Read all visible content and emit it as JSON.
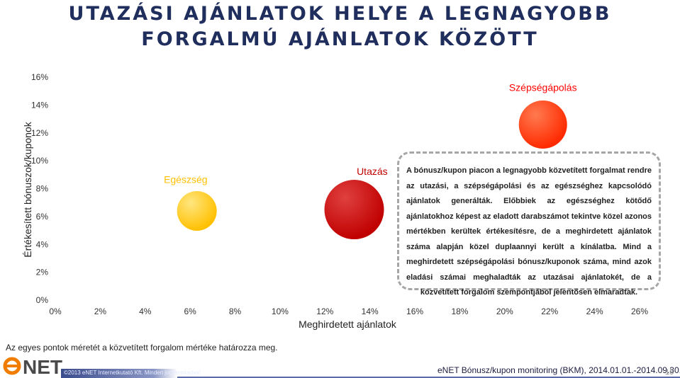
{
  "header": {
    "title_line1": "UTAZÁSI AJÁNLATOK HELYE A LEGNAGYOBB",
    "title_line2": "FORGALMÚ AJÁNLATOK KÖZÖTT"
  },
  "chart_data": {
    "type": "scatter",
    "xlabel": "Meghirdetett ajánlatok",
    "ylabel": "Értékesített bónuszok/kuponok",
    "xlim": [
      0,
      26
    ],
    "ylim": [
      0,
      16
    ],
    "x_ticks": [
      "0%",
      "2%",
      "4%",
      "6%",
      "8%",
      "10%",
      "12%",
      "14%",
      "16%",
      "18%",
      "20%",
      "22%",
      "24%",
      "26%"
    ],
    "y_ticks": [
      "0%",
      "2%",
      "4%",
      "6%",
      "8%",
      "10%",
      "12%",
      "14%",
      "16%"
    ],
    "grid": false,
    "series": [
      {
        "name": "Egészség",
        "x": 6.3,
        "y": 6.4,
        "color": "#ffc000",
        "label_color": "#ffc000"
      },
      {
        "name": "Utazás",
        "x": 13.3,
        "y": 6.5,
        "color": "#c00000",
        "label_color": "#c00000"
      },
      {
        "name": "Szépségápolás",
        "x": 21.7,
        "y": 12.6,
        "color": "#ff2a00",
        "label_color": "#ff0000"
      }
    ]
  },
  "note": "A bónusz/kupon piacon a legnagyobb közvetített forgalmat rendre az utazási, a szépségápolási és az egészséghez kapcsolódó ajánlatok generálták. Előbbiek az egészséghez kötődő ajánlatokhoz képest az eladott darabszámot tekintve közel azonos mértékben kerültek értékesítésre, de a meghirdetett ajánlatok száma alapján közel duplaannyi került a kínálatba. Mind a meghirdetett szépségápolási bónusz/kuponok száma, mind azok eladási számai meghaladták az utazásai ajánlatokét, de a közvetített forgalom szempontjából jelentősen elmaradtak.",
  "footnote": "Az egyes pontok méretét a közvetített forgalom mértéke határozza meg.",
  "footer": {
    "logo_text": "eNET",
    "copyright": "©2013 eNET Internetkutató Kft. Minden jog fenntartva!",
    "source": "eNET Bónusz/kupon monitoring (BKM), 2014.01.01.-2014.09.30.",
    "page_number": "15"
  },
  "colors": {
    "title": "#1f2e5c",
    "brand_orange": "#f07d00"
  }
}
